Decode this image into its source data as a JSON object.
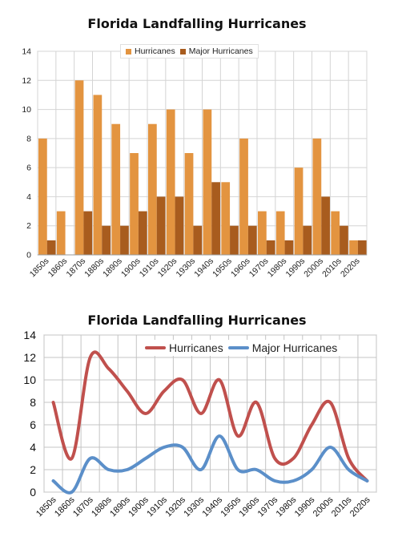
{
  "chart_data": [
    {
      "type": "bar",
      "title": "Florida Landfalling Hurricanes",
      "categories": [
        "1850s",
        "1860s",
        "1870s",
        "1880s",
        "1890s",
        "1900s",
        "1910s",
        "1920s",
        "1930s",
        "1940s",
        "1950s",
        "1960s",
        "1970s",
        "1980s",
        "1990s",
        "2000s",
        "2010s",
        "2020s"
      ],
      "series": [
        {
          "name": "Hurricanes",
          "values": [
            8,
            3,
            12,
            11,
            9,
            7,
            9,
            10,
            7,
            10,
            5,
            8,
            3,
            3,
            6,
            8,
            3,
            1
          ],
          "color": "#e39440"
        },
        {
          "name": "Major Hurricanes",
          "values": [
            1,
            0,
            3,
            2,
            2,
            3,
            4,
            4,
            2,
            5,
            2,
            2,
            1,
            1,
            2,
            4,
            2,
            1
          ],
          "color": "#a85c1e"
        }
      ],
      "yticks": [
        "0",
        "2",
        "4",
        "6",
        "8",
        "10",
        "12",
        "14"
      ],
      "ylim": [
        0,
        14
      ],
      "grid": true,
      "legend": "top-center",
      "xlabel": "",
      "ylabel": ""
    },
    {
      "type": "line",
      "title": "Florida Landfalling Hurricanes",
      "categories": [
        "1850s",
        "1860s",
        "1870s",
        "1880s",
        "1890s",
        "1900s",
        "1910s",
        "1920s",
        "1930s",
        "1940s",
        "1950s",
        "1960s",
        "1970s",
        "1980s",
        "1990s",
        "2000s",
        "2010s",
        "2020s"
      ],
      "series": [
        {
          "name": "Hurricanes",
          "values": [
            8,
            3,
            12,
            11,
            9,
            7,
            9,
            10,
            7,
            10,
            5,
            8,
            3,
            3,
            6,
            8,
            3,
            1
          ],
          "color": "#c0504d"
        },
        {
          "name": "Major Hurricanes",
          "values": [
            1,
            0,
            3,
            2,
            2,
            3,
            4,
            4,
            2,
            5,
            2,
            2,
            1,
            1,
            2,
            4,
            2,
            1
          ],
          "color": "#5b8fc9"
        }
      ],
      "yticks": [
        "0",
        "2",
        "4",
        "6",
        "8",
        "10",
        "12",
        "14"
      ],
      "ylim": [
        0,
        14
      ],
      "smooth": true,
      "grid": true,
      "legend": "top-center",
      "xlabel": "",
      "ylabel": ""
    }
  ]
}
